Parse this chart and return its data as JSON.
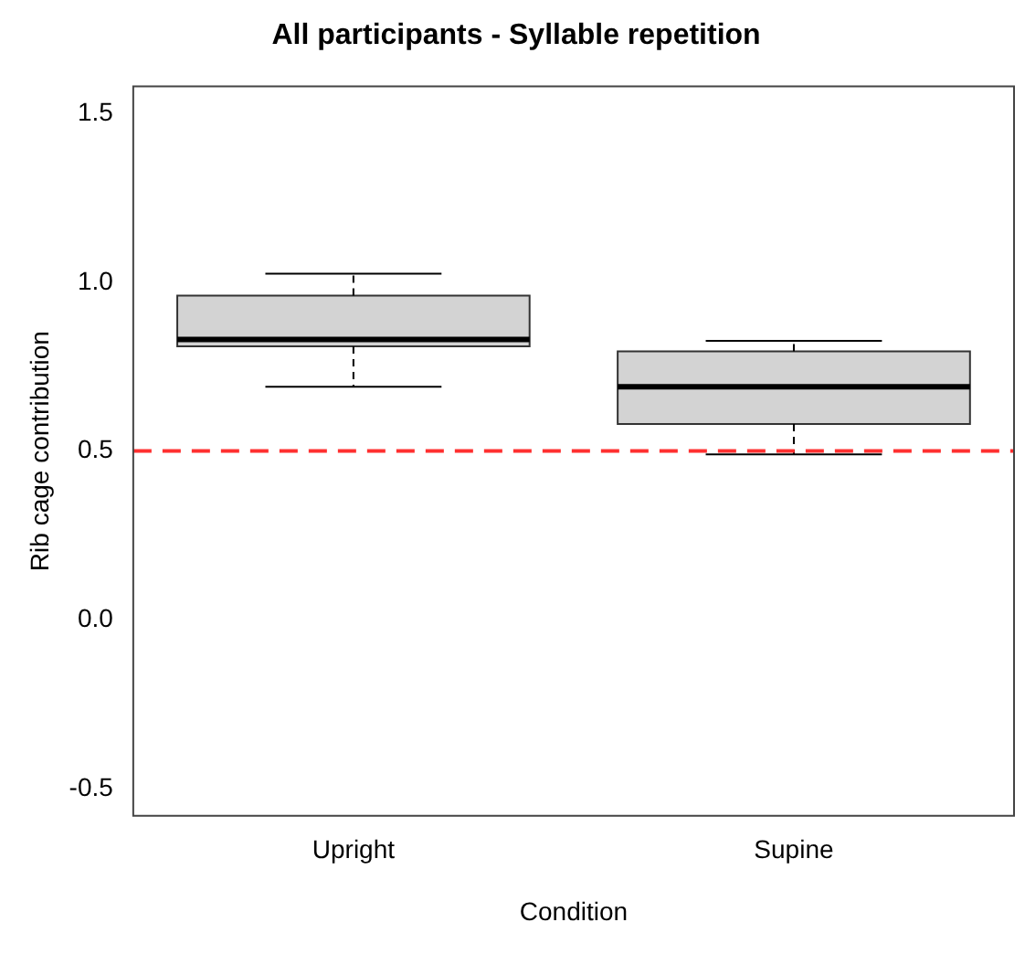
{
  "chart_data": {
    "type": "box",
    "title": "All participants - Syllable repetition",
    "xlabel": "Condition",
    "ylabel": "Rib cage contribution",
    "categories": [
      "Upright",
      "Supine"
    ],
    "color": "#d3d3d3",
    "boxes": [
      {
        "low": 0.69,
        "q1": 0.81,
        "median": 0.83,
        "q3": 0.96,
        "high": 1.025
      },
      {
        "low": 0.49,
        "q1": 0.58,
        "median": 0.69,
        "q3": 0.795,
        "high": 0.826
      }
    ],
    "ylim": [
      -0.58,
      1.58
    ],
    "yticks": [
      {
        "value": -0.5,
        "label": "-0.5"
      },
      {
        "value": 0,
        "label": "0.0"
      },
      {
        "value": 0.5,
        "label": "0.5"
      },
      {
        "value": 1,
        "label": "1.0"
      },
      {
        "value": 1.5,
        "label": "1.5"
      }
    ],
    "ref_lines": [
      {
        "axis": "y",
        "value": 0.5,
        "color": "#ff3030",
        "line_style": "dashed"
      }
    ]
  }
}
